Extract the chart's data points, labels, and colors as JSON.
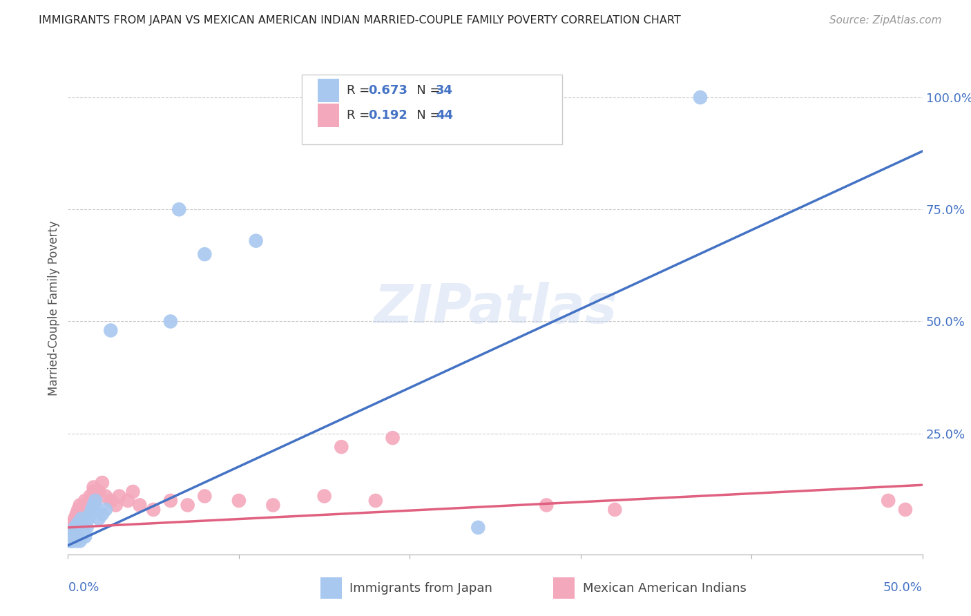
{
  "title": "IMMIGRANTS FROM JAPAN VS MEXICAN AMERICAN INDIAN MARRIED-COUPLE FAMILY POVERTY CORRELATION CHART",
  "source": "Source: ZipAtlas.com",
  "ylabel": "Married-Couple Family Poverty",
  "xlim": [
    0.0,
    0.5
  ],
  "ylim": [
    -0.02,
    1.08
  ],
  "watermark": "ZIPatlas",
  "legend1_R": "0.673",
  "legend1_N": "34",
  "legend2_R": "0.192",
  "legend2_N": "44",
  "color_blue": "#A8C8F0",
  "color_pink": "#F4A8BC",
  "color_blue_line": "#4472C4",
  "color_pink_line": "#E06080",
  "color_blue_text": "#4472C4",
  "color_title": "#222222",
  "color_source": "#999999",
  "japan_x": [
    0.001,
    0.002,
    0.002,
    0.003,
    0.003,
    0.004,
    0.004,
    0.005,
    0.005,
    0.006,
    0.006,
    0.007,
    0.007,
    0.008,
    0.008,
    0.009,
    0.01,
    0.01,
    0.011,
    0.012,
    0.013,
    0.014,
    0.015,
    0.016,
    0.018,
    0.02,
    0.022,
    0.025,
    0.06,
    0.24,
    0.11,
    0.08,
    0.065,
    0.37
  ],
  "japan_y": [
    0.01,
    0.02,
    0.01,
    0.03,
    0.01,
    0.02,
    0.04,
    0.03,
    0.01,
    0.05,
    0.02,
    0.04,
    0.01,
    0.06,
    0.02,
    0.03,
    0.05,
    0.02,
    0.04,
    0.06,
    0.07,
    0.08,
    0.09,
    0.1,
    0.06,
    0.07,
    0.08,
    0.48,
    0.5,
    0.04,
    0.68,
    0.65,
    0.75,
    1.0
  ],
  "mexican_x": [
    0.001,
    0.002,
    0.002,
    0.003,
    0.004,
    0.005,
    0.005,
    0.006,
    0.007,
    0.007,
    0.008,
    0.009,
    0.01,
    0.011,
    0.012,
    0.013,
    0.014,
    0.015,
    0.016,
    0.018,
    0.02,
    0.022,
    0.025,
    0.028,
    0.03,
    0.035,
    0.038,
    0.042,
    0.05,
    0.06,
    0.07,
    0.08,
    0.1,
    0.12,
    0.15,
    0.18,
    0.16,
    0.19,
    0.28,
    0.32,
    0.48,
    0.49,
    0.015,
    0.025
  ],
  "mexican_y": [
    0.02,
    0.04,
    0.02,
    0.05,
    0.06,
    0.07,
    0.03,
    0.08,
    0.05,
    0.09,
    0.06,
    0.07,
    0.1,
    0.09,
    0.08,
    0.11,
    0.09,
    0.13,
    0.1,
    0.12,
    0.14,
    0.11,
    0.1,
    0.09,
    0.11,
    0.1,
    0.12,
    0.09,
    0.08,
    0.1,
    0.09,
    0.11,
    0.1,
    0.09,
    0.11,
    0.1,
    0.22,
    0.24,
    0.09,
    0.08,
    0.1,
    0.08,
    0.12,
    0.1
  ],
  "blue_line_x": [
    0.0,
    0.5
  ],
  "blue_line_y": [
    0.0,
    0.88
  ],
  "pink_line_x": [
    0.0,
    0.5
  ],
  "pink_line_y": [
    0.04,
    0.135
  ],
  "ytick_positions": [
    0.0,
    0.25,
    0.5,
    0.75,
    1.0
  ],
  "ytick_labels": [
    "",
    "25.0%",
    "50.0%",
    "75.0%",
    "100.0%"
  ],
  "xtick_positions": [
    0.0,
    0.1,
    0.2,
    0.3,
    0.4,
    0.5
  ]
}
